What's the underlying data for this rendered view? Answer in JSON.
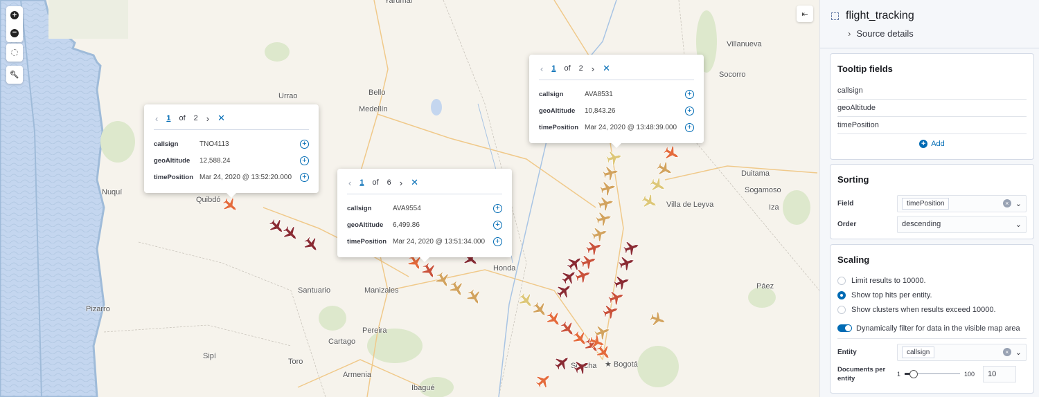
{
  "map": {
    "controls": [
      {
        "name": "zoom-in",
        "icon": "plus-circle-icon"
      },
      {
        "name": "zoom-out",
        "icon": "minus-circle-icon"
      },
      {
        "name": "set-view",
        "icon": "crosshair-icon"
      },
      {
        "name": "tools",
        "icon": "wrench-icon"
      }
    ],
    "collapse_icon": "collapse-panel-icon",
    "cities": [
      "Urrao",
      "Bello",
      "Medellín",
      "Nuquí",
      "Quibdó",
      "Santuario",
      "Manizales",
      "Honda",
      "Pereira",
      "Cartago",
      "Pizarro",
      "Sipí",
      "Toro",
      "Armenia",
      "Ibagué",
      "Villanueva",
      "Socorro",
      "Duitama",
      "Sogamoso",
      "Villa de Leyva",
      "Iza",
      "Páez",
      "★ Bogotá",
      "Soacha",
      "Yarumal"
    ],
    "plane_colors": {
      "dark": "#8a2b33",
      "orange": "#e46b3c",
      "tan": "#d2a35e",
      "light": "#ddc778",
      "red": "#c9523b"
    },
    "popups": [
      {
        "page": "1",
        "of": "of",
        "total": "2",
        "fields": [
          {
            "k": "callsign",
            "v": "TNO4113"
          },
          {
            "k": "geoAltitude",
            "v": "12,588.24"
          },
          {
            "k": "timePosition",
            "v": "Mar 24, 2020 @ 13:52:20.000"
          }
        ]
      },
      {
        "page": "1",
        "of": "of",
        "total": "6",
        "fields": [
          {
            "k": "callsign",
            "v": "AVA9554"
          },
          {
            "k": "geoAltitude",
            "v": "6,499.86"
          },
          {
            "k": "timePosition",
            "v": "Mar 24, 2020 @ 13:51:34.000"
          }
        ]
      },
      {
        "page": "1",
        "of": "of",
        "total": "2",
        "fields": [
          {
            "k": "callsign",
            "v": "AVA8531"
          },
          {
            "k": "geoAltitude",
            "v": "10,843.26"
          },
          {
            "k": "timePosition",
            "v": "Mar 24, 2020 @ 13:48:39.000"
          }
        ]
      }
    ]
  },
  "sidebar": {
    "title": "flight_tracking",
    "source_details": "Source details",
    "tooltip": {
      "title": "Tooltip fields",
      "fields": [
        "callsign",
        "geoAltitude",
        "timePosition"
      ],
      "add": "Add"
    },
    "sorting": {
      "title": "Sorting",
      "field_label": "Field",
      "field_value": "timePosition",
      "order_label": "Order",
      "order_value": "descending"
    },
    "scaling": {
      "title": "Scaling",
      "options": [
        "Limit results to 10000.",
        "Show top hits per entity.",
        "Show clusters when results exceed 10000."
      ],
      "selected": 1,
      "dynamic_filter": "Dynamically filter for data in the visible map area",
      "dynamic_filter_on": true,
      "entity_label": "Entity",
      "entity_value": "callsign",
      "docs_label": "Documents per entity",
      "slider_min": "1",
      "slider_max": "100",
      "docs_value": "10"
    }
  },
  "accent": "#006bb4"
}
